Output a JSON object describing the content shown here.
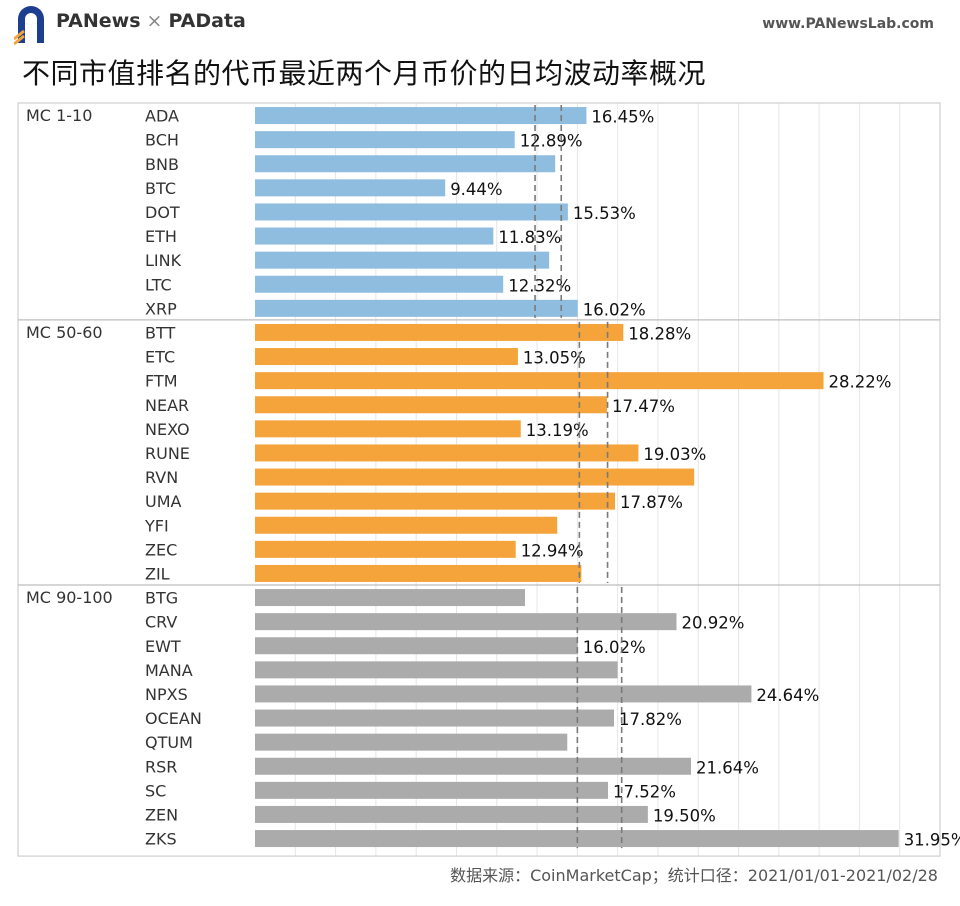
{
  "header": {
    "brand_left": "PANews",
    "brand_sep": "×",
    "brand_right": "PAData",
    "site": "www.PANewsLab.com"
  },
  "title": "不同市值排名的代币最近两个月币价的日均波动率概况",
  "footer": "数据来源：CoinMarketCap；统计口径：2021/01/01-2021/02/28",
  "colors": {
    "group1": "#8fbde0",
    "group2": "#f4a43b",
    "group3": "#ababab"
  },
  "chart_data": {
    "type": "bar",
    "orientation": "horizontal",
    "xlim": [
      0,
      34
    ],
    "groups": [
      {
        "name": "MC 1-10",
        "color": "#8fbde0",
        "reference_lines": [
          13.9,
          15.2
        ],
        "categories": [
          "ADA",
          "BCH",
          "BNB",
          "BTC",
          "DOT",
          "ETH",
          "LINK",
          "LTC",
          "XRP"
        ],
        "values": [
          16.45,
          12.89,
          14.9,
          9.44,
          15.53,
          11.83,
          14.6,
          12.32,
          16.02
        ],
        "labels": [
          "16.45%",
          "12.89%",
          "",
          "9.44%",
          "15.53%",
          "11.83%",
          "",
          "12.32%",
          "16.02%"
        ]
      },
      {
        "name": "MC 50-60",
        "color": "#f4a43b",
        "reference_lines": [
          16.1,
          17.5
        ],
        "categories": [
          "BTT",
          "ETC",
          "FTM",
          "NEAR",
          "NEXO",
          "RUNE",
          "RVN",
          "UMA",
          "YFI",
          "ZEC",
          "ZIL"
        ],
        "values": [
          18.28,
          13.05,
          28.22,
          17.47,
          13.19,
          19.03,
          21.8,
          17.87,
          15.0,
          12.94,
          16.2
        ],
        "labels": [
          "18.28%",
          "13.05%",
          "28.22%",
          "17.47%",
          "13.19%",
          "19.03%",
          "",
          "17.87%",
          "",
          "12.94%",
          ""
        ]
      },
      {
        "name": "MC 90-100",
        "color": "#ababab",
        "reference_lines": [
          16.0,
          18.2
        ],
        "categories": [
          "BTG",
          "CRV",
          "EWT",
          "MANA",
          "NPXS",
          "OCEAN",
          "QTUM",
          "RSR",
          "SC",
          "ZEN",
          "ZKS"
        ],
        "values": [
          13.4,
          20.92,
          16.02,
          18.0,
          24.64,
          17.82,
          15.5,
          21.64,
          17.52,
          19.5,
          31.95
        ],
        "labels": [
          "",
          "20.92%",
          "16.02%",
          "",
          "24.64%",
          "17.82%",
          "",
          "21.64%",
          "17.52%",
          "19.50%",
          "31.95%"
        ]
      }
    ]
  }
}
